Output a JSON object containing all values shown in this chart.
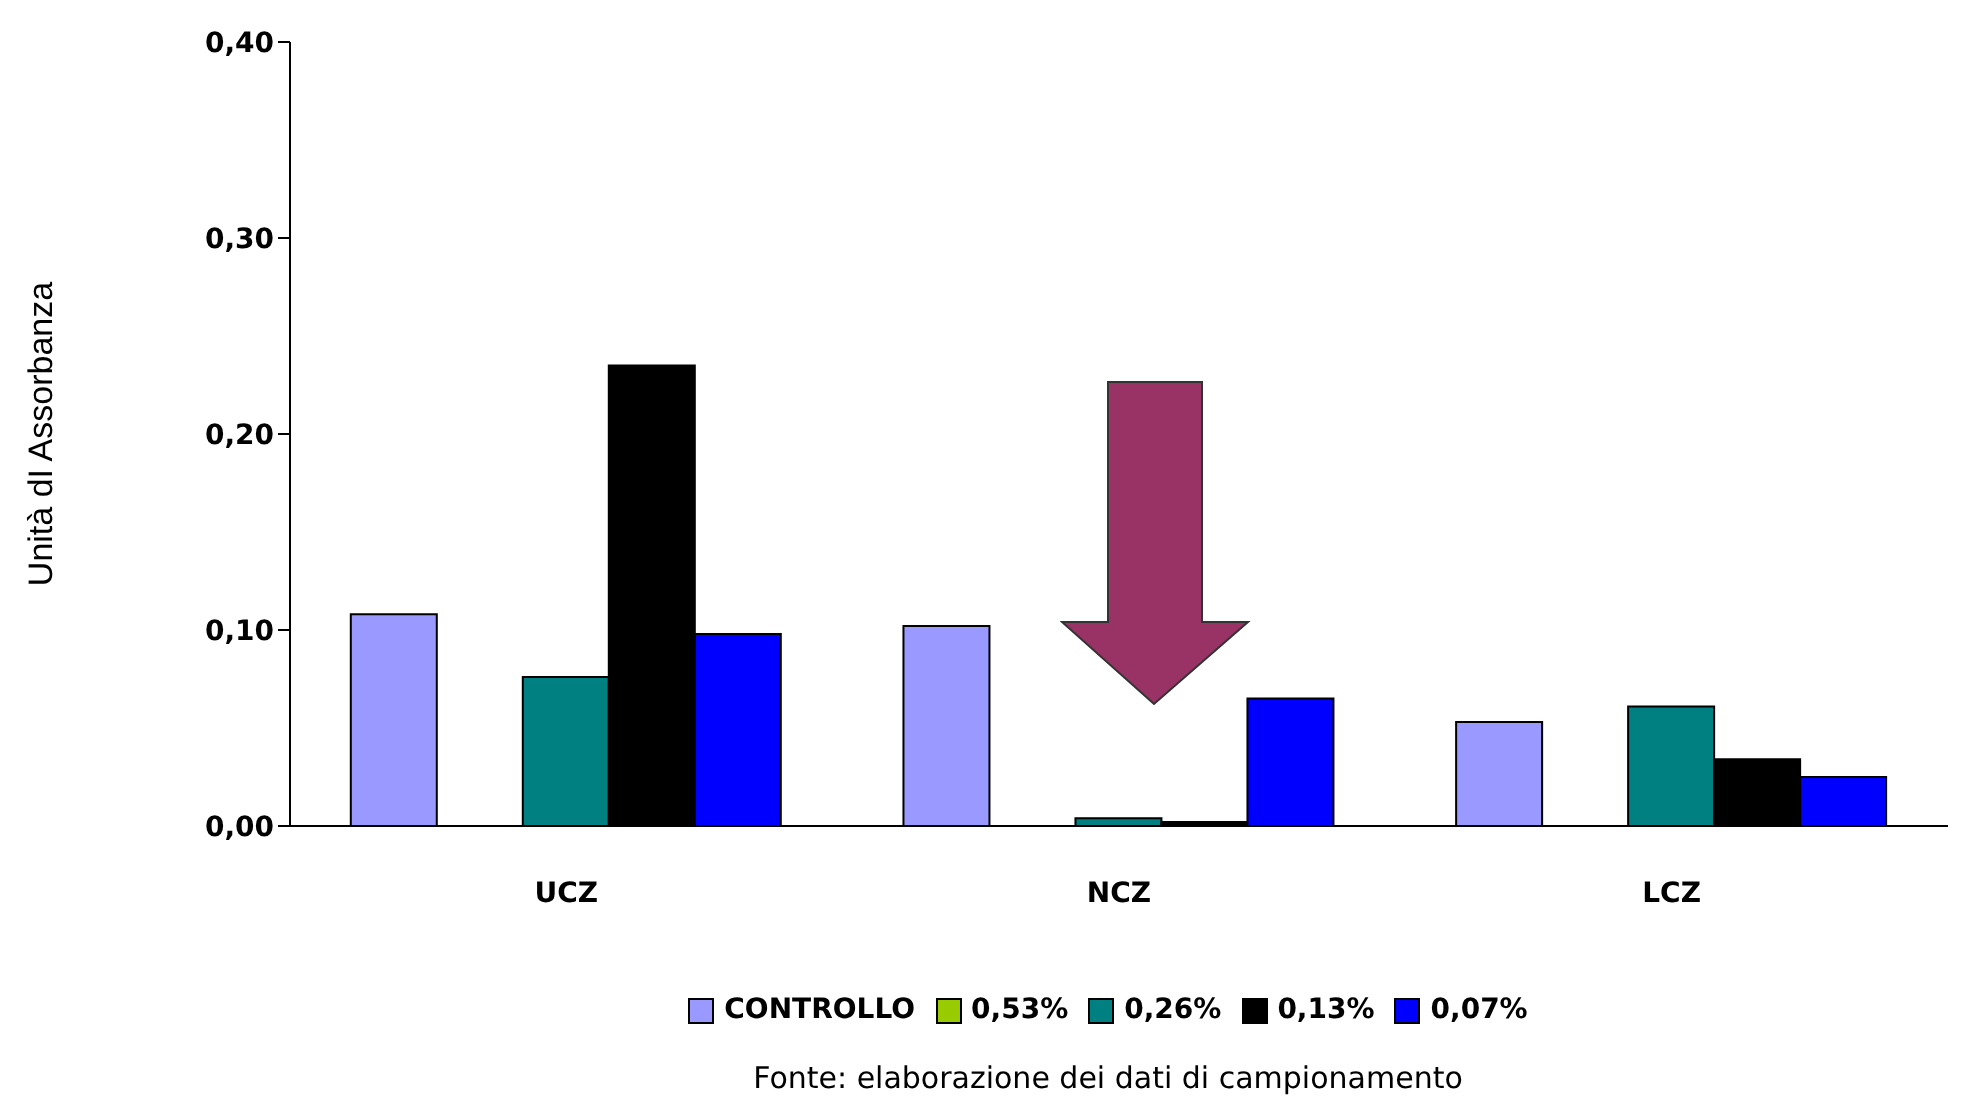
{
  "chart_data": {
    "type": "bar",
    "ylabel": "Unità dI Assorbanza",
    "categories": [
      "UCZ",
      "NCZ",
      "LCZ"
    ],
    "series": [
      {
        "name": "CONTROLLO",
        "color": "#9999ff",
        "values": [
          0.108,
          0.102,
          0.053
        ]
      },
      {
        "name": "0,53%",
        "color": "#99cc00",
        "values": [
          0,
          0,
          0
        ]
      },
      {
        "name": "0,26%",
        "color": "#008080",
        "values": [
          0.076,
          0.004,
          0.061
        ]
      },
      {
        "name": "0,13%",
        "color": "#000000",
        "values": [
          0.235,
          0.002,
          0.034
        ]
      },
      {
        "name": "0,07%",
        "color": "#0000ff",
        "values": [
          0.098,
          0.065,
          0.025
        ]
      }
    ],
    "ylim": [
      0,
      0.4
    ],
    "yticks": [
      {
        "value": 0,
        "label": "0,00"
      },
      {
        "value": 0.1,
        "label": "0,10"
      },
      {
        "value": 0.2,
        "label": "0,20"
      },
      {
        "value": 0.3,
        "label": "0,30"
      },
      {
        "value": 0.4,
        "label": "0,40"
      }
    ],
    "grid": false,
    "legend": "bottom",
    "annotations": [
      "Fonte: elaborazione dei dati di campionamento"
    ]
  }
}
